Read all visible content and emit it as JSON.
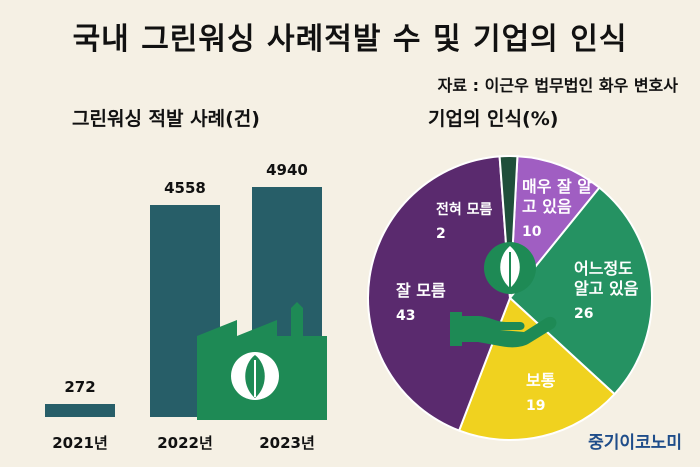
{
  "title": "국내 그린워싱 사례적발 수 및 기업의 인식",
  "source": "자료 : 이근우 법무법인 화우 변호사",
  "brand": "중기이코노미",
  "colors": {
    "background": "#f5f0e4",
    "bar": "#275e68",
    "factory_icon": "#1e8a55",
    "slice_very_well": "#a05ec2",
    "slice_somewhat": "#259262",
    "slice_average": "#f0d21f",
    "slice_not_well": "#5a2a6e",
    "slice_not_at_all": "#1f4f3a"
  },
  "chart_data": [
    {
      "type": "bar",
      "title": "그린워싱 적발 사례(건)",
      "categories": [
        "2021년",
        "2022년",
        "2023년"
      ],
      "values": [
        272,
        4558,
        4940
      ],
      "ylim": [
        0,
        5200
      ]
    },
    {
      "type": "pie",
      "title": "기업의 인식(%)",
      "slices": [
        {
          "label_lines": [
            "매우 잘 알",
            "고 있음"
          ],
          "value": 10
        },
        {
          "label_lines": [
            "어느정도",
            "알고 있음"
          ],
          "value": 26
        },
        {
          "label_lines": [
            "보통"
          ],
          "value": 19
        },
        {
          "label_lines": [
            "잘 모름"
          ],
          "value": 43
        },
        {
          "label_lines": [
            "전혀 모름"
          ],
          "value": 2
        }
      ]
    }
  ]
}
